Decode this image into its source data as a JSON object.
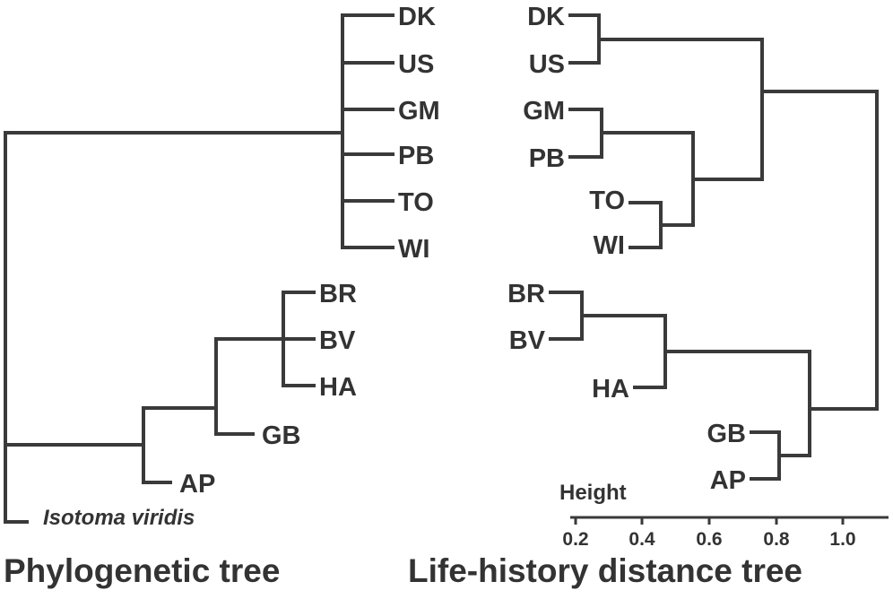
{
  "phylogenetic_tree": {
    "caption": "Phylogenetic tree",
    "outgroup": "Isotoma viridis",
    "taxa": [
      "DK",
      "US",
      "GM",
      "PB",
      "TO",
      "WI",
      "BR",
      "BV",
      "HA",
      "GB",
      "AP"
    ]
  },
  "life_history_tree": {
    "caption": "Life-history distance tree",
    "taxa": [
      "DK",
      "US",
      "GM",
      "PB",
      "TO",
      "WI",
      "BR",
      "BV",
      "HA",
      "GB",
      "AP"
    ],
    "axis": {
      "title": "Height",
      "ticks": [
        "0.2",
        "0.4",
        "0.6",
        "0.8",
        "1.0"
      ]
    }
  }
}
